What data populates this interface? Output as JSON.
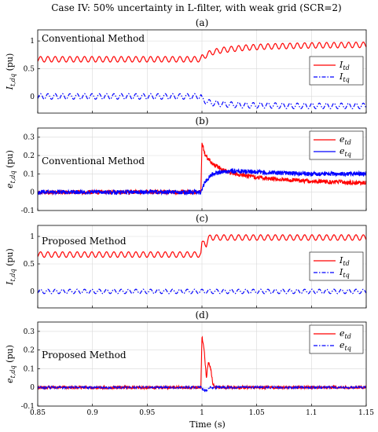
{
  "figure": {
    "title": "Case IV: 50% uncertainty in L-filter, with weak grid (SCR=2)",
    "xlabel": "Time (s)"
  },
  "colors": {
    "red": "#ff0000",
    "blue": "#0000ff"
  },
  "chart_data": [
    {
      "type": "line",
      "panel": "(a)",
      "note": "Conventional Method",
      "ylabel": "I_{t,dq} (pu)",
      "xlim": [
        0.85,
        1.15
      ],
      "ylim": [
        -0.3,
        1.2
      ],
      "xticks": [
        "0.85",
        "0.9",
        "0.95",
        "1",
        "1.05",
        "1.1",
        "1.15"
      ],
      "yticks": [
        "0",
        "0.5",
        "1"
      ],
      "grid": true,
      "legend": "right",
      "series": [
        {
          "name": "I",
          "sub": "td",
          "color": "#ff0000",
          "style": "solid",
          "x": [
            0.85,
            0.999,
            1.0,
            1.005,
            1.01,
            1.02,
            1.04,
            1.06,
            1.08,
            1.1,
            1.15
          ],
          "y": [
            0.67,
            0.67,
            0.7,
            0.76,
            0.8,
            0.84,
            0.88,
            0.9,
            0.91,
            0.92,
            0.93
          ],
          "ripple_amplitude": 0.05,
          "ripple_period_s": 0.0067
        },
        {
          "name": "I",
          "sub": "tq",
          "color": "#0000ff",
          "style": "dashdot",
          "x": [
            0.85,
            0.999,
            1.0,
            1.005,
            1.01,
            1.02,
            1.04,
            1.06,
            1.08,
            1.1,
            1.15
          ],
          "y": [
            0.0,
            0.0,
            -0.05,
            -0.1,
            -0.12,
            -0.14,
            -0.16,
            -0.16,
            -0.17,
            -0.17,
            -0.17
          ],
          "ripple_amplitude": 0.05,
          "ripple_period_s": 0.0067
        }
      ]
    },
    {
      "type": "line",
      "panel": "(b)",
      "note": "Conventional Method",
      "ylabel": "e_{t,dq} (pu)",
      "xlim": [
        0.85,
        1.15
      ],
      "ylim": [
        -0.1,
        0.35
      ],
      "xticks": [
        "0.85",
        "0.9",
        "0.95",
        "1",
        "1.05",
        "1.1",
        "1.15"
      ],
      "yticks": [
        "-0.1",
        "0",
        "0.1",
        "0.2",
        "0.3"
      ],
      "grid": true,
      "legend": "top-right",
      "series": [
        {
          "name": "e",
          "sub": "td",
          "color": "#ff0000",
          "style": "solid",
          "x": [
            0.85,
            0.999,
            1.0,
            1.003,
            1.01,
            1.02,
            1.03,
            1.05,
            1.07,
            1.1,
            1.15
          ],
          "y": [
            0.0,
            0.0,
            0.27,
            0.2,
            0.15,
            0.12,
            0.1,
            0.08,
            0.07,
            0.06,
            0.05
          ],
          "noise_amplitude": 0.012
        },
        {
          "name": "e",
          "sub": "tq",
          "color": "#0000ff",
          "style": "solid",
          "x": [
            0.85,
            0.999,
            1.003,
            1.01,
            1.02,
            1.03,
            1.05,
            1.07,
            1.1,
            1.15
          ],
          "y": [
            0.0,
            0.0,
            0.06,
            0.1,
            0.11,
            0.115,
            0.11,
            0.105,
            0.1,
            0.1
          ],
          "noise_amplitude": 0.012
        }
      ]
    },
    {
      "type": "line",
      "panel": "(c)",
      "note": "Proposed Method",
      "ylabel": "I_{t,dq} (pu)",
      "xlim": [
        0.85,
        1.15
      ],
      "ylim": [
        -0.3,
        1.2
      ],
      "xticks": [
        "0.85",
        "0.9",
        "0.95",
        "1",
        "1.05",
        "1.1",
        "1.15"
      ],
      "yticks": [
        "0",
        "0.5",
        "1"
      ],
      "grid": true,
      "legend": "right",
      "series": [
        {
          "name": "I",
          "sub": "td",
          "color": "#ff0000",
          "style": "solid",
          "x": [
            0.85,
            0.999,
            1.0,
            1.002,
            1.004,
            1.006,
            1.008,
            1.01,
            1.15
          ],
          "y": [
            0.67,
            0.67,
            0.85,
            0.92,
            0.85,
            0.95,
            1.0,
            0.98,
            0.98
          ],
          "ripple_amplitude": 0.05,
          "ripple_period_s": 0.0067
        },
        {
          "name": "I",
          "sub": "tq",
          "color": "#0000ff",
          "style": "dashdot",
          "x": [
            0.85,
            1.15
          ],
          "y": [
            0.0,
            0.0
          ],
          "ripple_amplitude": 0.04,
          "ripple_period_s": 0.0067
        }
      ]
    },
    {
      "type": "line",
      "panel": "(d)",
      "note": "Proposed Method",
      "ylabel": "e_{t,dq} (pu)",
      "xlim": [
        0.85,
        1.15
      ],
      "ylim": [
        -0.1,
        0.35
      ],
      "xticks": [
        "0.85",
        "0.9",
        "0.95",
        "1",
        "1.05",
        "1.1",
        "1.15"
      ],
      "yticks": [
        "-0.1",
        "0",
        "0.1",
        "0.2",
        "0.3"
      ],
      "grid": true,
      "legend": "top-right",
      "series": [
        {
          "name": "e",
          "sub": "td",
          "color": "#ff0000",
          "style": "solid",
          "x": [
            0.85,
            0.999,
            1.0,
            1.002,
            1.004,
            1.005,
            1.006,
            1.008,
            1.01,
            1.012,
            1.15
          ],
          "y": [
            0.0,
            0.0,
            0.27,
            0.2,
            0.05,
            0.1,
            0.14,
            0.1,
            0.02,
            0.0,
            0.0
          ],
          "noise_amplitude": 0.008
        },
        {
          "name": "e",
          "sub": "tq",
          "color": "#0000ff",
          "style": "dashdot",
          "x": [
            0.85,
            0.999,
            1.003,
            1.008,
            1.15
          ],
          "y": [
            0.0,
            0.0,
            -0.02,
            0.0,
            0.0
          ],
          "noise_amplitude": 0.006
        }
      ]
    }
  ]
}
